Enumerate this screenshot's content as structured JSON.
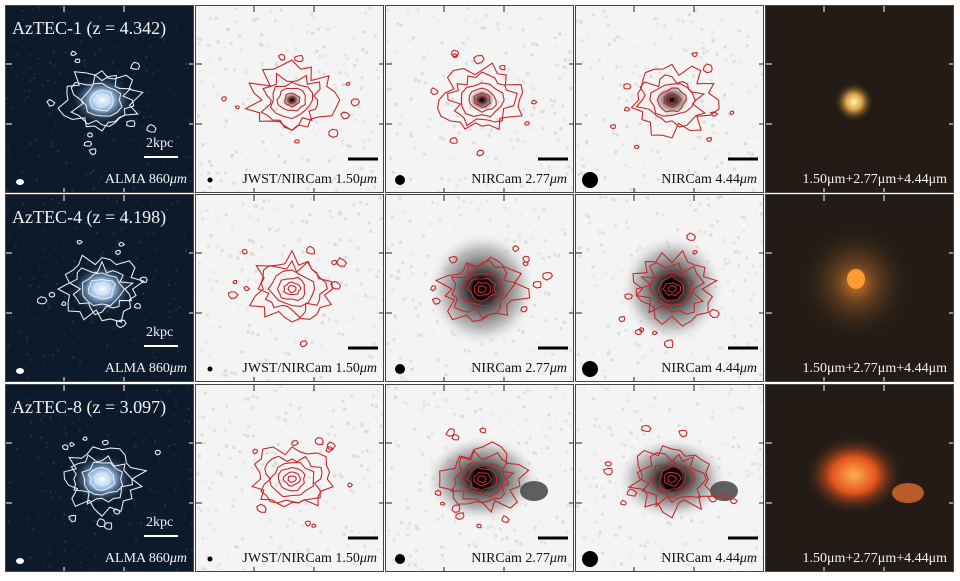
{
  "rows": [
    {
      "source_name": "AzTEC-1",
      "redshift_label": "(z = 4.342)",
      "scale_bar": "2kpc",
      "panels": {
        "alma": {
          "band": "ALMA 860",
          "unit": "μm"
        },
        "f150": {
          "band": "JWST/NIRCam 1.50",
          "unit": "μm"
        },
        "f277": {
          "band": "NIRCam 2.77",
          "unit": "μm"
        },
        "f444": {
          "band": "NIRCam 4.44",
          "unit": "μm"
        },
        "rgb": {
          "band": "1.50μm+2.77μm+4.44μm"
        }
      }
    },
    {
      "source_name": "AzTEC-4",
      "redshift_label": "(z = 4.198)",
      "scale_bar": "2kpc",
      "panels": {
        "alma": {
          "band": "ALMA 860",
          "unit": "μm"
        },
        "f150": {
          "band": "JWST/NIRCam 1.50",
          "unit": "μm"
        },
        "f277": {
          "band": "NIRCam 2.77",
          "unit": "μm"
        },
        "f444": {
          "band": "NIRCam 4.44",
          "unit": "μm"
        },
        "rgb": {
          "band": "1.50μm+2.77μm+4.44μm"
        }
      }
    },
    {
      "source_name": "AzTEC-8",
      "redshift_label": "(z = 3.097)",
      "scale_bar": "2kpc",
      "panels": {
        "alma": {
          "band": "ALMA 860",
          "unit": "μm"
        },
        "f150": {
          "band": "JWST/NIRCam 1.50",
          "unit": "μm"
        },
        "f277": {
          "band": "NIRCam 2.77",
          "unit": "μm"
        },
        "f444": {
          "band": "NIRCam 4.44",
          "unit": "μm"
        },
        "rgb": {
          "band": "1.50μm+2.77μm+4.44μm"
        }
      }
    }
  ],
  "colors": {
    "alma_background": "#0c1a2c",
    "alma_contour": "#dfe9f7",
    "nircam_contour": "#c62828",
    "rgb_background": "#231c16",
    "frame": "#444444"
  }
}
